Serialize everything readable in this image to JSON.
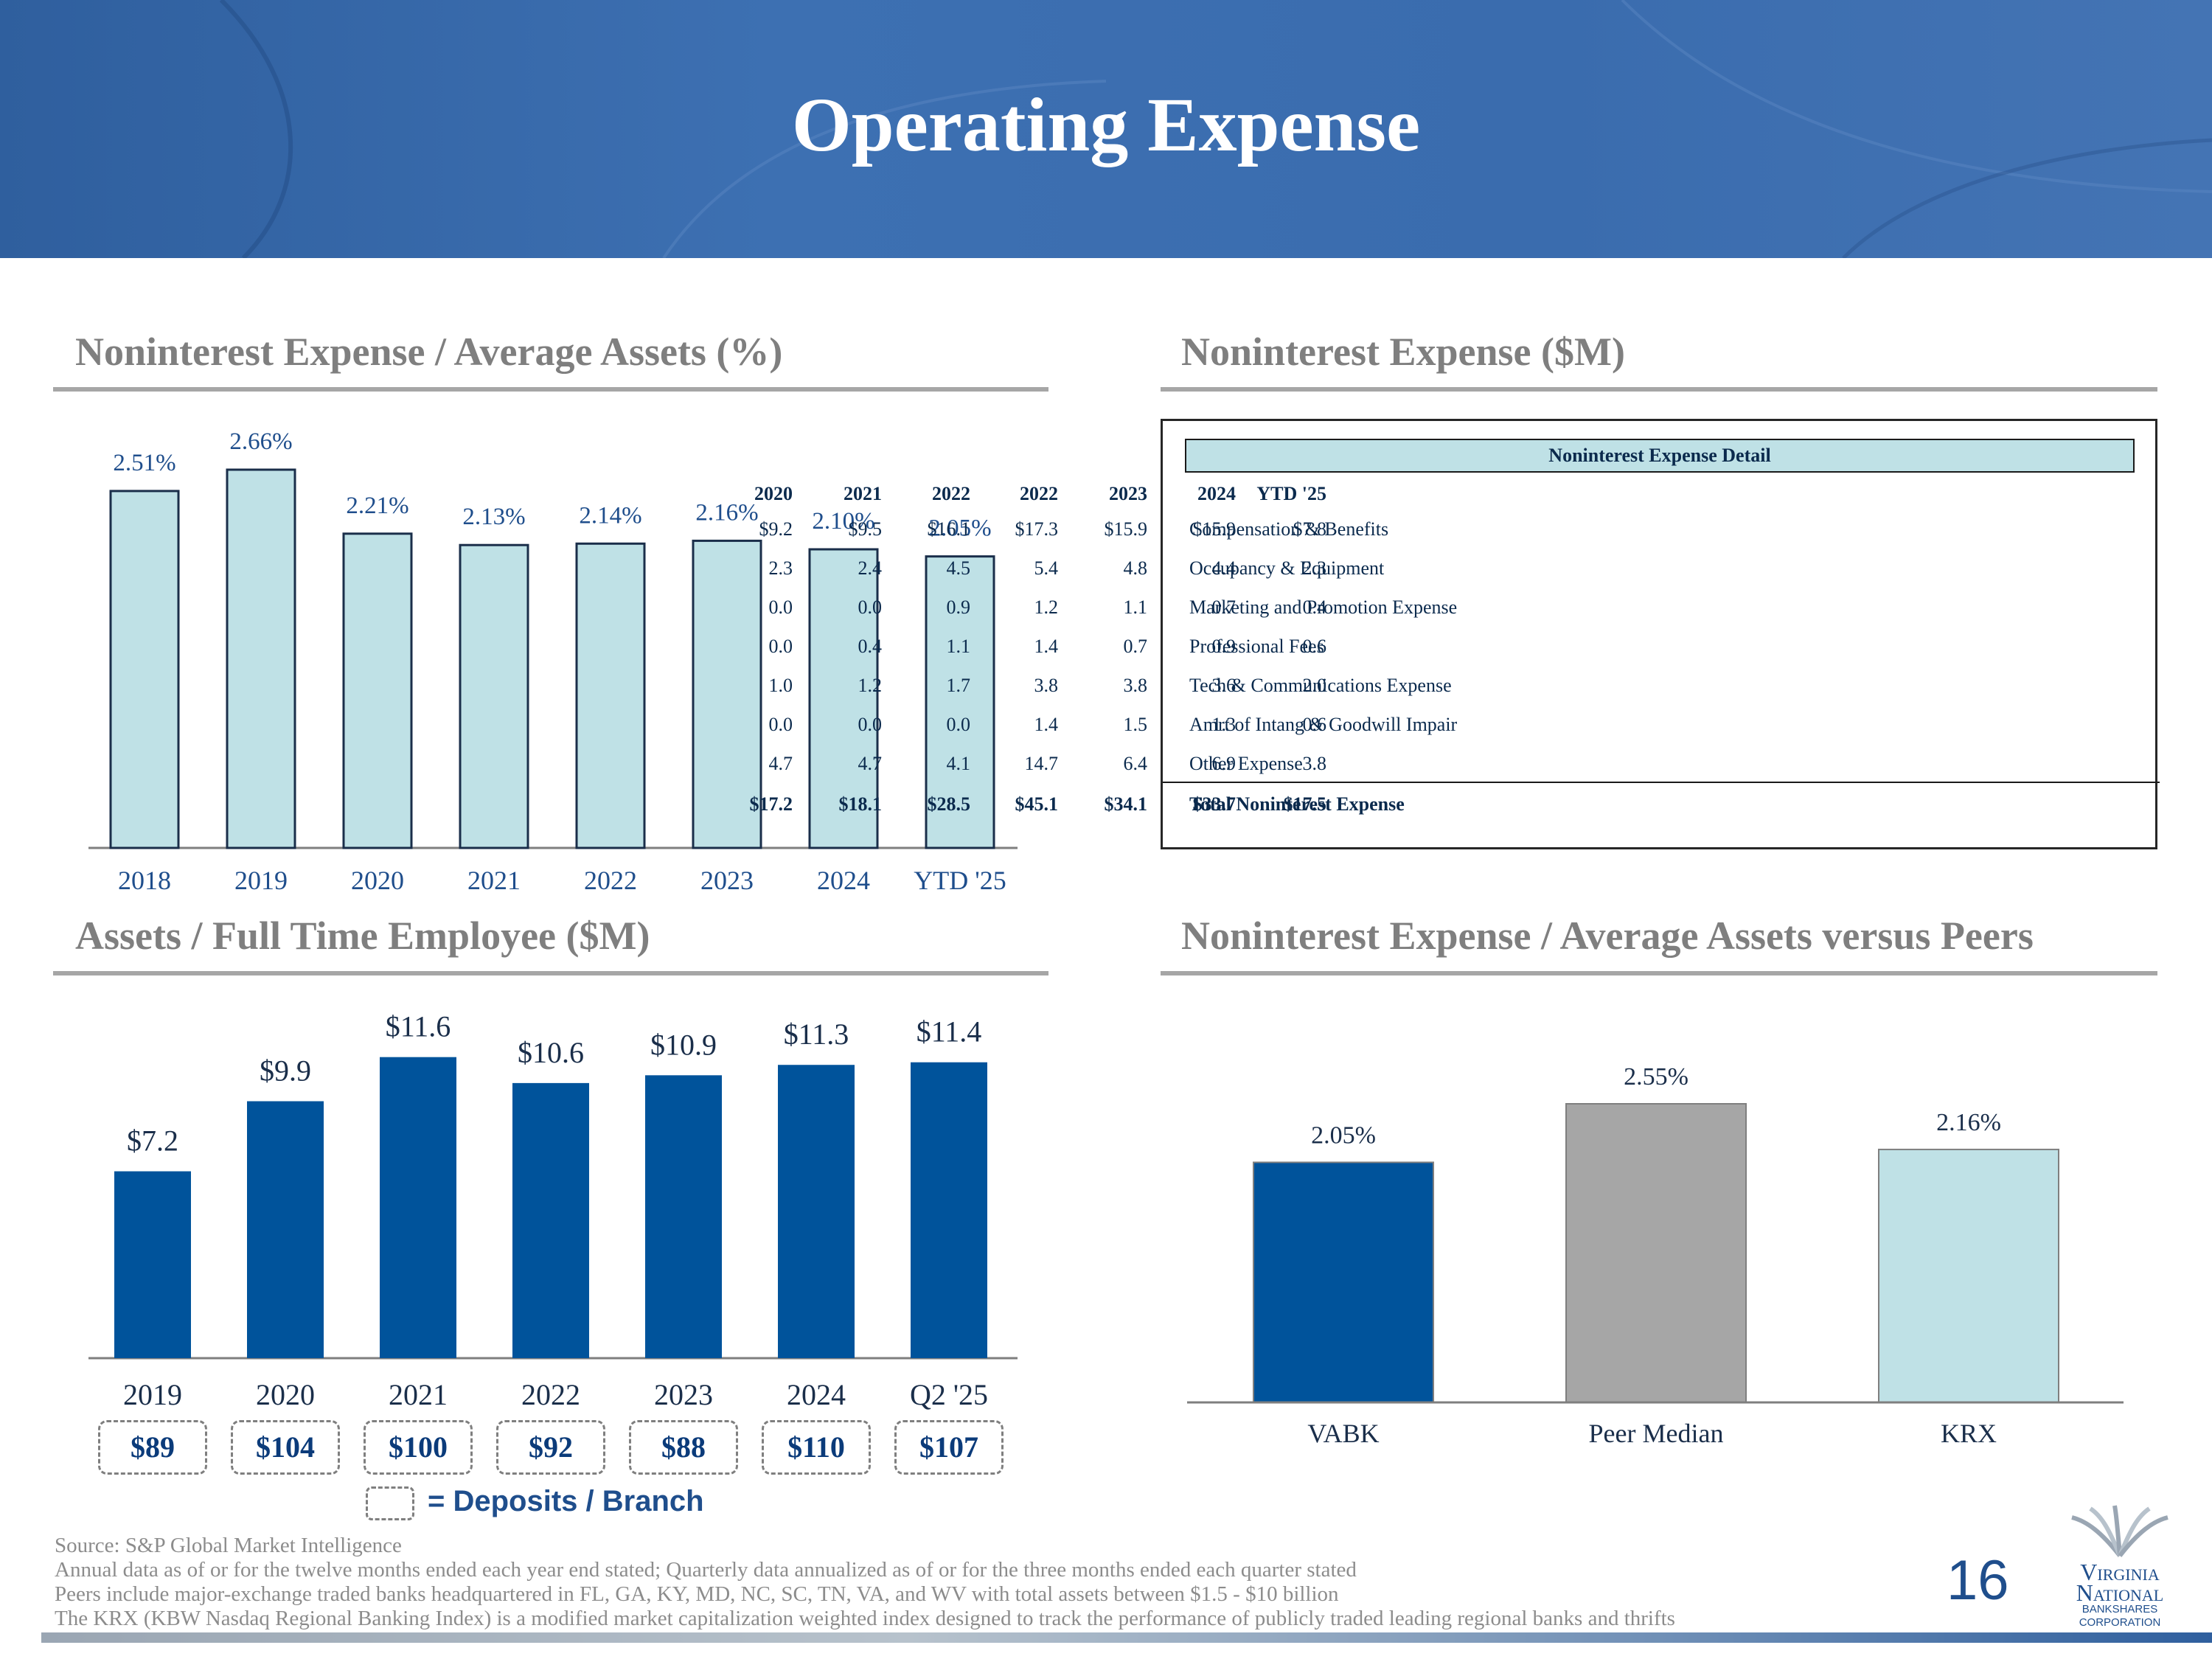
{
  "header": {
    "title": "Operating Expense"
  },
  "colors": {
    "navy": "#00539b",
    "light_teal": "#bfe1e6",
    "gray": "#a6a6a6",
    "text_blue": "#1f4e8c"
  },
  "sections": {
    "expense_ratio": {
      "title": "Noninterest Expense / Average Assets (%)"
    },
    "expense_table": {
      "title": "Noninterest Expense ($M)"
    },
    "assets_per_fte": {
      "title": "Assets / Full Time Employee ($M)"
    },
    "peers": {
      "title": "Noninterest Expense / Average Assets versus Peers"
    }
  },
  "chart_data": [
    {
      "type": "bar",
      "title": "Noninterest Expense / Average Assets (%)",
      "categories": [
        "2018",
        "2019",
        "2020",
        "2021",
        "2022",
        "2023",
        "2024",
        "YTD '25"
      ],
      "values": [
        2.51,
        2.66,
        2.21,
        2.13,
        2.14,
        2.16,
        2.1,
        2.05
      ],
      "labels": [
        "2.51%",
        "2.66%",
        "2.21%",
        "2.13%",
        "2.14%",
        "2.16%",
        "2.10%",
        "2.05%"
      ],
      "ylim": [
        0,
        2.8
      ],
      "color": "#bfe1e6"
    },
    {
      "type": "bar",
      "title": "Assets / Full Time Employee ($M)",
      "categories": [
        "2019",
        "2020",
        "2021",
        "2022",
        "2023",
        "2024",
        "Q2 '25"
      ],
      "values": [
        7.2,
        9.9,
        11.6,
        10.6,
        10.9,
        11.3,
        11.4
      ],
      "labels": [
        "$7.2",
        "$9.9",
        "$11.6",
        "$10.6",
        "$10.9",
        "$11.3",
        "$11.4"
      ],
      "ylim": [
        0,
        12.5
      ],
      "color": "#00539b",
      "deposits_per_branch": [
        "$89",
        "$104",
        "$100",
        "$92",
        "$88",
        "$110",
        "$107"
      ],
      "deposits_legend": "= Deposits / Branch"
    },
    {
      "type": "bar",
      "title": "Noninterest Expense / Average Assets versus Peers",
      "categories": [
        "VABK",
        "Peer Median",
        "KRX"
      ],
      "values": [
        2.05,
        2.55,
        2.16
      ],
      "labels": [
        "2.05%",
        "2.55%",
        "2.16%"
      ],
      "ylim": [
        0,
        3.4
      ],
      "colors": [
        "#00539b",
        "#a6a6a6",
        "#bfe1e6"
      ]
    }
  ],
  "expense_table": {
    "header": "Noninterest Expense Detail",
    "years": [
      "2020",
      "2021",
      "2022",
      "2022",
      "2023",
      "2024",
      "YTD '25"
    ],
    "rows": [
      {
        "name": "Compensation & Benefits",
        "values": [
          "$9.2",
          "$9.5",
          "$16.1",
          "$17.3",
          "$15.9",
          "$15.9",
          "$7.8"
        ]
      },
      {
        "name": "Occupancy & Equipment",
        "values": [
          "2.3",
          "2.4",
          "4.5",
          "5.4",
          "4.8",
          "4.4",
          "2.3"
        ]
      },
      {
        "name": "Marketing and Promotion Expense",
        "values": [
          "0.0",
          "0.0",
          "0.9",
          "1.2",
          "1.1",
          "0.7",
          "0.4"
        ]
      },
      {
        "name": "Professional Fees",
        "values": [
          "0.0",
          "0.4",
          "1.1",
          "1.4",
          "0.7",
          "0.9",
          "0.6"
        ]
      },
      {
        "name": "Tech & Communications Expense",
        "values": [
          "1.0",
          "1.2",
          "1.7",
          "3.8",
          "3.8",
          "3.6",
          "2.0"
        ]
      },
      {
        "name": "Amrt of Intang & Goodwill Impair",
        "values": [
          "0.0",
          "0.0",
          "0.0",
          "1.4",
          "1.5",
          "1.3",
          "0.6"
        ]
      },
      {
        "name": "Other Expense",
        "values": [
          "4.7",
          "4.7",
          "4.1",
          "14.7",
          "6.4",
          "6.9",
          "3.8"
        ]
      }
    ],
    "total": {
      "name": "Total Noninterest Expense",
      "values": [
        "$17.2",
        "$18.1",
        "$28.5",
        "$45.1",
        "$34.1",
        "$33.7",
        "$17.5"
      ]
    }
  },
  "footnotes": [
    "Source: S&P Global Market Intelligence",
    "Annual data as of or for the twelve months ended each year end stated; Quarterly data annualized as of or for the three months ended each quarter stated",
    "Peers include major-exchange traded banks headquartered in FL, GA, KY, MD, NC, SC, TN, VA, and WV with total assets between $1.5 - $10 billion",
    "The KRX (KBW Nasdaq Regional Banking Index) is a modified market capitalization weighted index designed to track the performance of publicly traded leading regional banks and thrifts"
  ],
  "page_number": "16",
  "logo": {
    "line1": "Virginia",
    "line2": "National",
    "line3": "BANKSHARES",
    "line4": "CORPORATION"
  }
}
